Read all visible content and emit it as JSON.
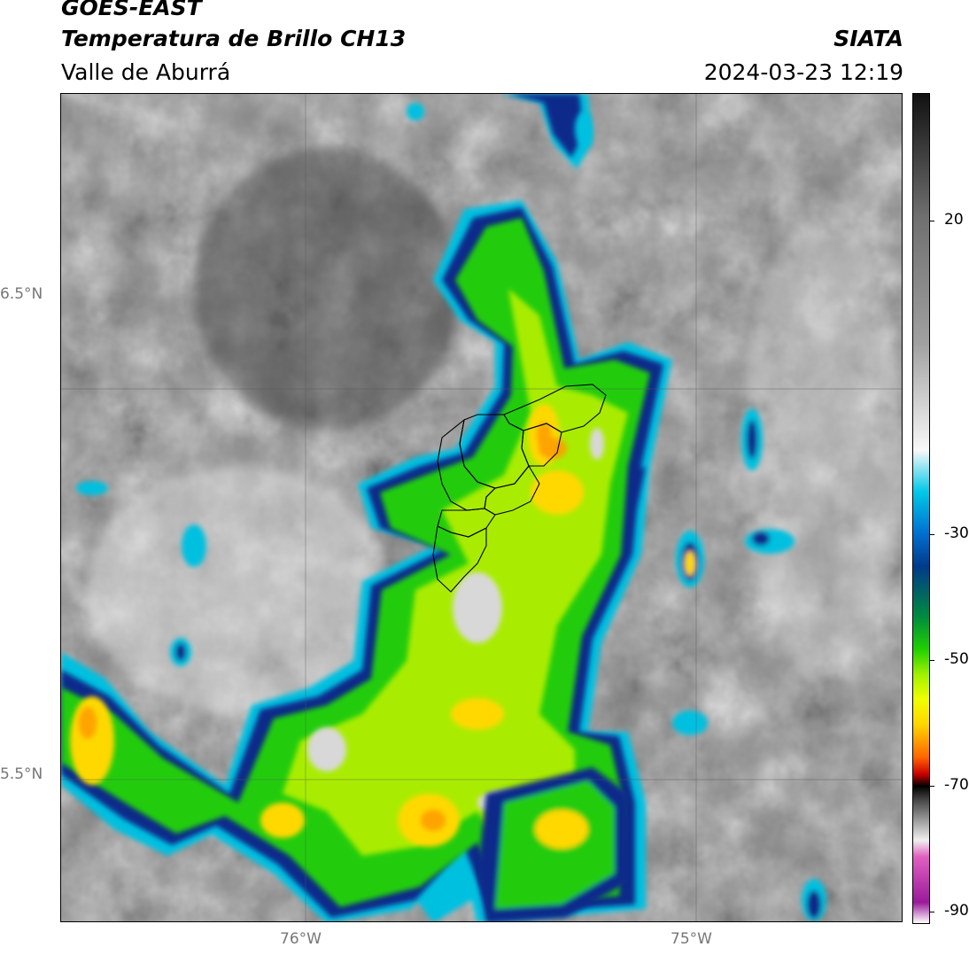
{
  "header": {
    "line1": "GOES-EAST",
    "line2": "Temperatura de Brillo CH13",
    "line3": "Valle de Aburrá",
    "org": "SIATA",
    "datetime": "2024-03-23 12:19"
  },
  "axes": {
    "lat_labels": [
      "6.5°N",
      "5.5°N"
    ],
    "lon_labels": [
      "76°W",
      "75°W"
    ]
  },
  "colorbar": {
    "ticks": [
      "20",
      "-30",
      "-50",
      "-70",
      "-90"
    ],
    "stops": [
      "#ffffff",
      "#9a1a9a",
      "#e060c0",
      "#f0f0f0",
      "#404040",
      "#000000",
      "#cc0000",
      "#ff6600",
      "#ffd700",
      "#f0ff00",
      "#a0f000",
      "#20d000",
      "#008a40",
      "#003a8a",
      "#0070d0",
      "#00c8e8",
      "#f8f8f8",
      "#a0a0a0",
      "#707070",
      "#111111"
    ]
  },
  "map_colors": {
    "background_gray": "#8c8c8c",
    "cloud_cold_cyan": "#00c0e0",
    "cloud_blue": "#0a2a8a",
    "cloud_green": "#20cc10",
    "cloud_yellow": "#f0e000",
    "cloud_orange": "#ffa000",
    "boundary_color": "#000000"
  }
}
